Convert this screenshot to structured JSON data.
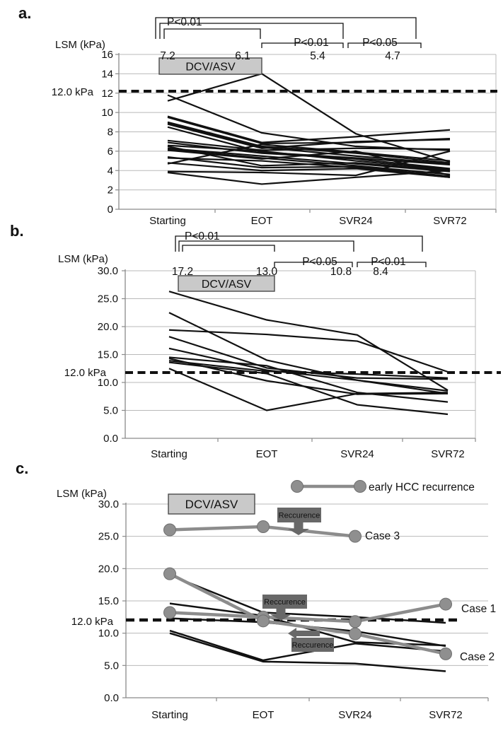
{
  "colors": {
    "black_line": "#111111",
    "gray_series": "#8c8c8c",
    "gray_marker_fill": "#8f8f8f",
    "gray_marker_edge": "#6f6f6f",
    "annotation_box": "#686868",
    "annotation_text": "#ffffff",
    "treatment_box_fill": "#c9c9c9",
    "treatment_box_edge": "#4a4a4a",
    "gridline": "#b9b9b9",
    "axis": "#8a8a8a",
    "threshold_dash": "#111111"
  },
  "chart_data": [
    {
      "id": "a",
      "panel_label": "a.",
      "type": "line",
      "yaxis_title": "LSM (kPa)",
      "ytick_labels": [
        "16",
        "14",
        "12",
        "10",
        "8",
        "6",
        "4",
        "2",
        "0"
      ],
      "ylim": [
        0,
        16
      ],
      "categories": [
        "Starting",
        "EOT",
        "SVR24",
        "SVR72"
      ],
      "threshold_value": 12.0,
      "threshold_label": "12.0 kPa",
      "treatment_box_label": "DCV/ASV",
      "mean_values": [
        "7.2",
        "6.1",
        "5.4",
        "4.7"
      ],
      "significance_brackets": [
        {
          "pair": [
            "Starting",
            "SVR72"
          ],
          "label": "P<0.01"
        },
        {
          "pair": [
            "Starting",
            "SVR24"
          ],
          "label": ""
        },
        {
          "pair": [
            "Starting",
            "EOT"
          ],
          "label": ""
        },
        {
          "pair": [
            "EOT",
            "SVR24"
          ],
          "label": "P<0.01"
        },
        {
          "pair": [
            "SVR24",
            "SVR72"
          ],
          "label": "P<0.05"
        }
      ],
      "series": [
        [
          11.8,
          7.9,
          6.5,
          6.1
        ],
        [
          11.2,
          14.0,
          7.8,
          4.9
        ],
        [
          9.6,
          6.9,
          7.5,
          8.2
        ],
        [
          9.5,
          6.8,
          6.9,
          7.3
        ],
        [
          9.0,
          6.5,
          5.8,
          4.8
        ],
        [
          8.9,
          6.4,
          5.5,
          4.7
        ],
        [
          8.8,
          6.3,
          7.0,
          7.2
        ],
        [
          8.5,
          5.9,
          5.3,
          4.6
        ],
        [
          7.1,
          6.1,
          6.3,
          6.2
        ],
        [
          6.9,
          5.8,
          5.2,
          4.2
        ],
        [
          6.6,
          6.0,
          5.0,
          4.1
        ],
        [
          6.5,
          4.5,
          4.8,
          4.0
        ],
        [
          6.3,
          5.5,
          4.7,
          3.9
        ],
        [
          6.2,
          5.3,
          4.5,
          3.6
        ],
        [
          6.1,
          5.2,
          6.0,
          3.5
        ],
        [
          5.4,
          4.3,
          4.4,
          3.4
        ],
        [
          5.3,
          5.0,
          4.3,
          3.3
        ],
        [
          4.8,
          4.0,
          4.2,
          3.3
        ],
        [
          4.7,
          6.7,
          5.9,
          5.0
        ],
        [
          3.9,
          3.8,
          3.5,
          6.0
        ],
        [
          3.8,
          2.6,
          3.3,
          4.0
        ]
      ]
    },
    {
      "id": "b",
      "panel_label": "b.",
      "type": "line",
      "yaxis_title": "LSM (kPa)",
      "ytick_labels": [
        "30.0",
        "25.0",
        "20.0",
        "15.0",
        "10.0",
        "5.0",
        "0.0"
      ],
      "ylim": [
        0,
        30
      ],
      "categories": [
        "Starting",
        "EOT",
        "SVR24",
        "SVR72"
      ],
      "threshold_value": 12.0,
      "threshold_label": "12.0 kPa",
      "treatment_box_label": "DCV/ASV",
      "mean_values": [
        "17.2",
        "13.0",
        "10.8",
        "8.4"
      ],
      "significance_brackets": [
        {
          "pair": [
            "Starting",
            "SVR72"
          ],
          "label": "P<0.01"
        },
        {
          "pair": [
            "Starting",
            "SVR24"
          ],
          "label": ""
        },
        {
          "pair": [
            "Starting",
            "EOT"
          ],
          "label": ""
        },
        {
          "pair": [
            "EOT",
            "SVR24"
          ],
          "label": "P<0.05"
        },
        {
          "pair": [
            "SVR24",
            "SVR72"
          ],
          "label": "P<0.01"
        }
      ],
      "series": [
        [
          26.3,
          21.2,
          18.5,
          8.6
        ],
        [
          22.5,
          14.0,
          10.4,
          8.0
        ],
        [
          19.4,
          18.6,
          17.4,
          11.9
        ],
        [
          18.2,
          12.6,
          10.8,
          10.6
        ],
        [
          16.1,
          12.2,
          10.4,
          8.5
        ],
        [
          14.5,
          13.0,
          8.2,
          6.5
        ],
        [
          14.3,
          10.3,
          7.9,
          8.0
        ],
        [
          13.9,
          12.0,
          11.5,
          10.8
        ],
        [
          13.6,
          11.6,
          6.0,
          4.3
        ],
        [
          12.5,
          5.0,
          8.0,
          8.2
        ]
      ]
    },
    {
      "id": "c",
      "panel_label": "c.",
      "type": "line",
      "yaxis_title": "LSM (kPa)",
      "ytick_labels": [
        "30.0",
        "25.0",
        "20.0",
        "15.0",
        "10.0",
        "5.0",
        "0.0"
      ],
      "ylim": [
        0,
        30
      ],
      "categories": [
        "Starting",
        "EOT",
        "SVR24",
        "SVR72"
      ],
      "threshold_value": 12.0,
      "threshold_label": "12.0 kPa",
      "treatment_box_label": "DCV/ASV",
      "legend": {
        "label": "early HCC recurrence"
      },
      "series": [
        [
          19.0,
          13.2,
          12.5,
          11.6
        ],
        [
          14.6,
          12.7,
          8.6,
          8.1
        ],
        [
          12.3,
          11.7,
          10.3,
          8.0
        ],
        [
          10.4,
          5.8,
          8.4,
          7.2
        ],
        [
          10.0,
          5.6,
          5.3,
          4.1
        ]
      ],
      "cases": [
        {
          "name": "Case 1",
          "values": [
            13.2,
            12.5,
            11.8,
            14.5
          ]
        },
        {
          "name": "Case 2",
          "values": [
            19.2,
            11.9,
            9.9,
            6.8
          ]
        },
        {
          "name": "Case 3",
          "values": [
            26.0,
            26.5,
            25.0,
            null
          ]
        }
      ],
      "annotations": [
        "Reccurence",
        "Reccurence",
        "Reccurence"
      ]
    }
  ]
}
